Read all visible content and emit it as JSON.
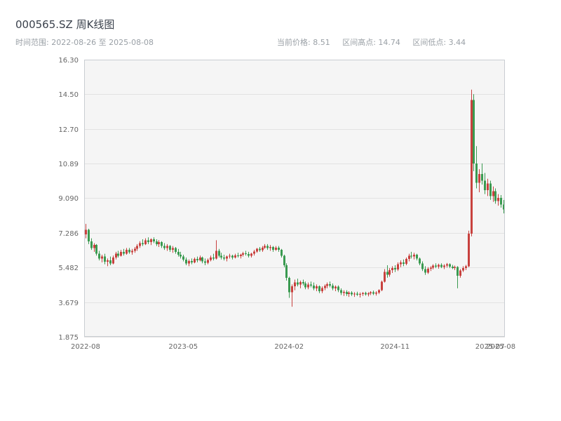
{
  "header": {
    "title": "000565.SZ 周K线图",
    "time_range": "时间范围: 2022-08-26 至 2025-08-08",
    "stats": {
      "current": "当前价格: 8.51",
      "high": "区间高点: 14.74",
      "low": "区间低点: 3.44"
    }
  },
  "chart_data": {
    "type": "candlestick",
    "title": "000565.SZ 周K线图",
    "symbol": "000565.SZ",
    "interval": "weekly",
    "current_price": 8.51,
    "range_high": 14.74,
    "range_low": 3.44,
    "ylim": [
      1.875,
      16.3
    ],
    "y_ticks": {
      "labels": [
        "16.30",
        "14.50",
        "12.70",
        "10.89",
        "9.090",
        "7.286",
        "5.482",
        "3.679",
        "1.875"
      ],
      "values": [
        16.3,
        14.5,
        12.7,
        10.89,
        9.09,
        7.286,
        5.482,
        3.679,
        1.875
      ]
    },
    "x_ticks": [
      {
        "label": "2022-08",
        "index": 0
      },
      {
        "label": "2023-05",
        "index": 36
      },
      {
        "label": "2024-02",
        "index": 75
      },
      {
        "label": "2024-11",
        "index": 114
      },
      {
        "label": "2025-07",
        "index": 149
      },
      {
        "label": "2025-08",
        "index": 153
      }
    ],
    "colors": {
      "up": "#c8413e",
      "down": "#3a9a50",
      "grid": "#e2e2e2",
      "plot_bg": "#f5f5f5",
      "frame": "#c9cdd2",
      "tick_text": "#666666"
    },
    "candles": [
      [
        "2022-08-26",
        7.2,
        7.75,
        7.0,
        7.45
      ],
      [
        "2022-09-02",
        7.45,
        7.5,
        6.7,
        6.85
      ],
      [
        "2022-09-09",
        6.85,
        7.0,
        6.4,
        6.5
      ],
      [
        "2022-09-16",
        6.5,
        6.75,
        6.3,
        6.65
      ],
      [
        "2022-09-23",
        6.65,
        6.7,
        6.1,
        6.2
      ],
      [
        "2022-09-30",
        6.2,
        6.35,
        5.85,
        5.95
      ],
      [
        "2022-10-07",
        5.95,
        6.15,
        5.75,
        6.05
      ],
      [
        "2022-10-14",
        6.05,
        6.2,
        5.65,
        5.78
      ],
      [
        "2022-10-21",
        5.78,
        5.95,
        5.55,
        5.85
      ],
      [
        "2022-10-28",
        5.85,
        6.05,
        5.6,
        5.7
      ],
      [
        "2022-11-04",
        5.7,
        6.1,
        5.65,
        6.0
      ],
      [
        "2022-11-11",
        6.0,
        6.3,
        5.9,
        6.2
      ],
      [
        "2022-11-18",
        6.2,
        6.35,
        6.0,
        6.1
      ],
      [
        "2022-11-25",
        6.1,
        6.4,
        6.05,
        6.3
      ],
      [
        "2022-12-02",
        6.3,
        6.45,
        6.1,
        6.2
      ],
      [
        "2022-12-09",
        6.2,
        6.5,
        6.15,
        6.4
      ],
      [
        "2022-12-16",
        6.4,
        6.5,
        6.2,
        6.28
      ],
      [
        "2022-12-23",
        6.28,
        6.45,
        6.15,
        6.35
      ],
      [
        "2022-12-30",
        6.35,
        6.55,
        6.25,
        6.45
      ],
      [
        "2023-01-06",
        6.45,
        6.7,
        6.35,
        6.6
      ],
      [
        "2023-01-13",
        6.6,
        6.85,
        6.5,
        6.75
      ],
      [
        "2023-01-20",
        6.75,
        6.95,
        6.6,
        6.7
      ],
      [
        "2023-01-27",
        6.7,
        7.0,
        6.65,
        6.9
      ],
      [
        "2023-02-03",
        6.9,
        7.05,
        6.7,
        6.8
      ],
      [
        "2023-02-10",
        6.8,
        7.0,
        6.65,
        6.95
      ],
      [
        "2023-02-17",
        6.95,
        7.05,
        6.75,
        6.85
      ],
      [
        "2023-02-24",
        6.85,
        6.95,
        6.6,
        6.7
      ],
      [
        "2023-03-03",
        6.7,
        6.9,
        6.55,
        6.8
      ],
      [
        "2023-03-10",
        6.8,
        6.85,
        6.5,
        6.6
      ],
      [
        "2023-03-17",
        6.6,
        6.75,
        6.4,
        6.5
      ],
      [
        "2023-03-24",
        6.5,
        6.7,
        6.35,
        6.6
      ],
      [
        "2023-03-31",
        6.6,
        6.65,
        6.3,
        6.4
      ],
      [
        "2023-04-07",
        6.4,
        6.6,
        6.25,
        6.5
      ],
      [
        "2023-04-14",
        6.5,
        6.55,
        6.2,
        6.3
      ],
      [
        "2023-04-21",
        6.3,
        6.45,
        6.05,
        6.15
      ],
      [
        "2023-04-28",
        6.15,
        6.3,
        5.95,
        6.05
      ],
      [
        "2023-05-05",
        6.05,
        6.15,
        5.8,
        5.9
      ],
      [
        "2023-05-12",
        5.9,
        6.0,
        5.6,
        5.7
      ],
      [
        "2023-05-19",
        5.7,
        5.9,
        5.55,
        5.82
      ],
      [
        "2023-05-26",
        5.82,
        5.95,
        5.65,
        5.75
      ],
      [
        "2023-06-02",
        5.75,
        6.0,
        5.7,
        5.92
      ],
      [
        "2023-06-09",
        5.92,
        6.05,
        5.75,
        5.85
      ],
      [
        "2023-06-16",
        5.85,
        6.1,
        5.8,
        6.0
      ],
      [
        "2023-06-23",
        6.0,
        6.05,
        5.7,
        5.8
      ],
      [
        "2023-06-30",
        5.8,
        5.95,
        5.6,
        5.72
      ],
      [
        "2023-07-07",
        5.72,
        5.95,
        5.65,
        5.88
      ],
      [
        "2023-07-14",
        5.88,
        6.1,
        5.8,
        6.0
      ],
      [
        "2023-07-21",
        6.0,
        6.2,
        5.85,
        5.95
      ],
      [
        "2023-07-28",
        5.95,
        6.9,
        5.9,
        6.35
      ],
      [
        "2023-08-04",
        6.35,
        6.45,
        6.0,
        6.1
      ],
      [
        "2023-08-11",
        6.1,
        6.25,
        5.9,
        6.0
      ],
      [
        "2023-08-18",
        6.0,
        6.15,
        5.85,
        5.95
      ],
      [
        "2023-08-25",
        5.95,
        6.1,
        5.8,
        6.05
      ],
      [
        "2023-09-01",
        6.05,
        6.2,
        5.95,
        6.1
      ],
      [
        "2023-09-08",
        6.1,
        6.15,
        5.9,
        6.0
      ],
      [
        "2023-09-15",
        6.0,
        6.2,
        5.95,
        6.12
      ],
      [
        "2023-09-22",
        6.12,
        6.25,
        6.0,
        6.08
      ],
      [
        "2023-09-29",
        6.08,
        6.2,
        5.95,
        6.15
      ],
      [
        "2023-10-06",
        6.15,
        6.3,
        6.05,
        6.22
      ],
      [
        "2023-10-13",
        6.22,
        6.35,
        6.1,
        6.18
      ],
      [
        "2023-10-20",
        6.18,
        6.3,
        6.0,
        6.1
      ],
      [
        "2023-10-27",
        6.1,
        6.25,
        6.0,
        6.2
      ],
      [
        "2023-11-03",
        6.2,
        6.4,
        6.1,
        6.32
      ],
      [
        "2023-11-10",
        6.32,
        6.5,
        6.25,
        6.45
      ],
      [
        "2023-11-17",
        6.45,
        6.55,
        6.3,
        6.38
      ],
      [
        "2023-11-24",
        6.38,
        6.6,
        6.3,
        6.52
      ],
      [
        "2023-12-01",
        6.52,
        6.7,
        6.45,
        6.6
      ],
      [
        "2023-12-08",
        6.6,
        6.7,
        6.4,
        6.5
      ],
      [
        "2023-12-15",
        6.5,
        6.65,
        6.35,
        6.55
      ],
      [
        "2023-12-22",
        6.55,
        6.6,
        6.3,
        6.4
      ],
      [
        "2023-12-29",
        6.4,
        6.6,
        6.35,
        6.52
      ],
      [
        "2024-01-05",
        6.52,
        6.6,
        6.3,
        6.4
      ],
      [
        "2024-01-12",
        6.4,
        6.45,
        6.0,
        6.1
      ],
      [
        "2024-01-19",
        6.1,
        6.15,
        5.5,
        5.6
      ],
      [
        "2024-01-26",
        5.6,
        5.7,
        4.8,
        4.95
      ],
      [
        "2024-02-02",
        4.95,
        5.0,
        3.9,
        4.2
      ],
      [
        "2024-02-09",
        4.2,
        4.6,
        3.44,
        4.5
      ],
      [
        "2024-02-16",
        4.5,
        4.85,
        4.3,
        4.7
      ],
      [
        "2024-02-23",
        4.7,
        4.9,
        4.5,
        4.6
      ],
      [
        "2024-03-01",
        4.6,
        4.8,
        4.4,
        4.72
      ],
      [
        "2024-03-08",
        4.72,
        4.85,
        4.55,
        4.65
      ],
      [
        "2024-03-15",
        4.65,
        4.75,
        4.35,
        4.45
      ],
      [
        "2024-03-22",
        4.45,
        4.7,
        4.35,
        4.6
      ],
      [
        "2024-03-29",
        4.6,
        4.75,
        4.45,
        4.55
      ],
      [
        "2024-04-05",
        4.55,
        4.7,
        4.3,
        4.4
      ],
      [
        "2024-04-12",
        4.4,
        4.6,
        4.25,
        4.5
      ],
      [
        "2024-04-19",
        4.5,
        4.55,
        4.15,
        4.25
      ],
      [
        "2024-04-26",
        4.25,
        4.5,
        4.15,
        4.42
      ],
      [
        "2024-05-03",
        4.42,
        4.6,
        4.3,
        4.52
      ],
      [
        "2024-05-10",
        4.52,
        4.7,
        4.4,
        4.62
      ],
      [
        "2024-05-17",
        4.62,
        4.75,
        4.45,
        4.55
      ],
      [
        "2024-05-24",
        4.55,
        4.65,
        4.3,
        4.4
      ],
      [
        "2024-05-31",
        4.4,
        4.55,
        4.25,
        4.48
      ],
      [
        "2024-06-07",
        4.48,
        4.55,
        4.2,
        4.3
      ],
      [
        "2024-06-14",
        4.3,
        4.4,
        4.05,
        4.15
      ],
      [
        "2024-06-21",
        4.15,
        4.3,
        4.0,
        4.22
      ],
      [
        "2024-06-28",
        4.22,
        4.3,
        4.0,
        4.1
      ],
      [
        "2024-07-05",
        4.1,
        4.25,
        3.95,
        4.18
      ],
      [
        "2024-07-12",
        4.18,
        4.25,
        4.0,
        4.08
      ],
      [
        "2024-07-19",
        4.08,
        4.2,
        3.95,
        4.12
      ],
      [
        "2024-07-26",
        4.12,
        4.22,
        4.0,
        4.06
      ],
      [
        "2024-08-02",
        4.06,
        4.18,
        3.92,
        4.1
      ],
      [
        "2024-08-09",
        4.1,
        4.2,
        4.0,
        4.15
      ],
      [
        "2024-08-16",
        4.15,
        4.22,
        4.02,
        4.08
      ],
      [
        "2024-08-23",
        4.08,
        4.2,
        3.98,
        4.14
      ],
      [
        "2024-08-30",
        4.14,
        4.25,
        4.05,
        4.2
      ],
      [
        "2024-09-06",
        4.2,
        4.28,
        4.05,
        4.12
      ],
      [
        "2024-09-13",
        4.12,
        4.25,
        4.02,
        4.18
      ],
      [
        "2024-09-20",
        4.18,
        4.35,
        4.1,
        4.3
      ],
      [
        "2024-09-27",
        4.3,
        4.8,
        4.25,
        4.75
      ],
      [
        "2024-10-04",
        4.75,
        5.4,
        4.7,
        5.25
      ],
      [
        "2024-10-11",
        5.25,
        5.6,
        4.95,
        5.1
      ],
      [
        "2024-10-18",
        5.1,
        5.45,
        5.0,
        5.35
      ],
      [
        "2024-10-25",
        5.35,
        5.55,
        5.2,
        5.45
      ],
      [
        "2024-11-01",
        5.45,
        5.6,
        5.25,
        5.38
      ],
      [
        "2024-11-08",
        5.38,
        5.75,
        5.3,
        5.65
      ],
      [
        "2024-11-15",
        5.65,
        5.85,
        5.5,
        5.75
      ],
      [
        "2024-11-22",
        5.75,
        5.9,
        5.55,
        5.68
      ],
      [
        "2024-11-29",
        5.68,
        6.0,
        5.6,
        5.92
      ],
      [
        "2024-12-06",
        5.92,
        6.2,
        5.8,
        6.1
      ],
      [
        "2024-12-13",
        6.1,
        6.3,
        5.95,
        6.05
      ],
      [
        "2024-12-20",
        6.05,
        6.25,
        5.9,
        6.15
      ],
      [
        "2024-12-27",
        6.15,
        6.2,
        5.85,
        5.95
      ],
      [
        "2025-01-03",
        5.95,
        6.0,
        5.6,
        5.7
      ],
      [
        "2025-01-10",
        5.7,
        5.8,
        5.3,
        5.4
      ],
      [
        "2025-01-17",
        5.4,
        5.55,
        5.1,
        5.22
      ],
      [
        "2025-01-24",
        5.22,
        5.5,
        5.15,
        5.42
      ],
      [
        "2025-01-31",
        5.42,
        5.55,
        5.3,
        5.48
      ],
      [
        "2025-02-07",
        5.48,
        5.65,
        5.38,
        5.58
      ],
      [
        "2025-02-14",
        5.58,
        5.7,
        5.45,
        5.52
      ],
      [
        "2025-02-21",
        5.52,
        5.68,
        5.42,
        5.62
      ],
      [
        "2025-02-28",
        5.62,
        5.7,
        5.45,
        5.5
      ],
      [
        "2025-03-07",
        5.5,
        5.65,
        5.4,
        5.58
      ],
      [
        "2025-03-14",
        5.58,
        5.72,
        5.48,
        5.65
      ],
      [
        "2025-03-21",
        5.65,
        5.7,
        5.45,
        5.52
      ],
      [
        "2025-03-28",
        5.52,
        5.62,
        5.4,
        5.46
      ],
      [
        "2025-04-04",
        5.46,
        5.58,
        5.35,
        5.5
      ],
      [
        "2025-04-11",
        5.5,
        5.55,
        4.4,
        5.05
      ],
      [
        "2025-04-18",
        5.05,
        5.4,
        4.95,
        5.32
      ],
      [
        "2025-04-25",
        5.32,
        5.55,
        5.25,
        5.45
      ],
      [
        "2025-05-02",
        5.45,
        5.62,
        5.35,
        5.55
      ],
      [
        "2025-05-09",
        5.55,
        7.4,
        5.5,
        7.25
      ],
      [
        "2025-05-16",
        7.25,
        14.74,
        7.1,
        14.2
      ],
      [
        "2025-05-23",
        14.2,
        14.5,
        10.5,
        10.9
      ],
      [
        "2025-05-30",
        10.9,
        11.8,
        9.6,
        9.9
      ],
      [
        "2025-06-06",
        9.9,
        10.6,
        9.4,
        10.35
      ],
      [
        "2025-06-13",
        10.35,
        10.9,
        9.8,
        10.0
      ],
      [
        "2025-06-20",
        10.0,
        10.4,
        9.3,
        9.5
      ],
      [
        "2025-06-27",
        9.5,
        10.1,
        9.2,
        9.85
      ],
      [
        "2025-07-04",
        9.85,
        10.0,
        9.0,
        9.2
      ],
      [
        "2025-07-11",
        9.2,
        9.7,
        8.9,
        9.45
      ],
      [
        "2025-07-18",
        9.45,
        9.6,
        8.8,
        8.95
      ],
      [
        "2025-07-25",
        8.95,
        9.3,
        8.7,
        9.1
      ],
      [
        "2025-08-01",
        9.1,
        9.25,
        8.6,
        8.75
      ],
      [
        "2025-08-08",
        8.75,
        9.0,
        8.3,
        8.51
      ]
    ]
  }
}
